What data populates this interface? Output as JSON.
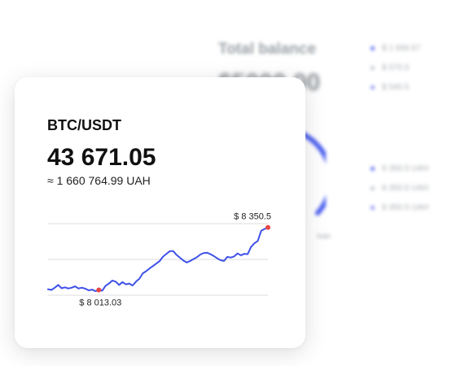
{
  "background": {
    "title": "Total balance",
    "amount": "$5000.00",
    "legend_top": [
      {
        "label": "$ 1 666.67",
        "color": "#5b6cf0"
      },
      {
        "label": "$ 570.5",
        "color": "#c3c6cc"
      },
      {
        "label": "$ 540.5",
        "color": "#8a93f2"
      }
    ],
    "legend_bottom": [
      {
        "label": "8 350.5 UAH",
        "color": "#5b6cf0"
      },
      {
        "label": "8 350.5 UAH",
        "color": "#c3c6cc"
      },
      {
        "label": "8 350.5 UAH",
        "color": "#8a93f2"
      }
    ],
    "donut_caption": "Ivan",
    "donut_color": "#4a5ef0"
  },
  "card": {
    "pair": "BTC/USDT",
    "price": "43 671.05",
    "converted": "≈ 1 660 764.99 UAH"
  },
  "chart_data": {
    "type": "line",
    "line_color": "#3f51e8",
    "marker_color": "#e84545",
    "gridlines": 3,
    "ylim": [
      7990,
      8370
    ],
    "x": [
      0,
      1,
      2,
      3,
      4,
      5,
      6,
      7,
      8,
      9,
      10,
      11,
      12,
      13,
      14,
      15,
      16,
      17,
      18,
      19,
      20,
      21,
      22,
      23,
      24,
      25,
      26,
      27,
      28,
      29,
      30,
      31,
      32,
      33,
      34,
      35,
      36,
      37,
      38,
      39,
      40,
      41,
      42,
      43,
      44,
      45,
      46,
      47,
      48,
      49,
      50,
      51,
      52,
      53,
      54,
      55,
      56,
      57,
      58,
      59,
      60,
      61,
      62,
      63,
      64,
      65
    ],
    "values": [
      8022,
      8018,
      8030,
      8045,
      8027,
      8032,
      8026,
      8030,
      8037,
      8026,
      8030,
      8025,
      8016,
      8020,
      8012,
      8018,
      8014,
      8040,
      8052,
      8068,
      8062,
      8045,
      8060,
      8048,
      8052,
      8042,
      8062,
      8078,
      8106,
      8118,
      8132,
      8145,
      8158,
      8172,
      8195,
      8210,
      8224,
      8224,
      8204,
      8189,
      8174,
      8164,
      8172,
      8182,
      8192,
      8206,
      8214,
      8216,
      8208,
      8198,
      8186,
      8176,
      8172,
      8194,
      8190,
      8196,
      8212,
      8202,
      8210,
      8208,
      8246,
      8266,
      8278,
      8332,
      8342,
      8350
    ],
    "min_point": {
      "index": 15,
      "label": "$ 8 013.03"
    },
    "max_point": {
      "index": 65,
      "label": "$ 8 350.5"
    }
  }
}
